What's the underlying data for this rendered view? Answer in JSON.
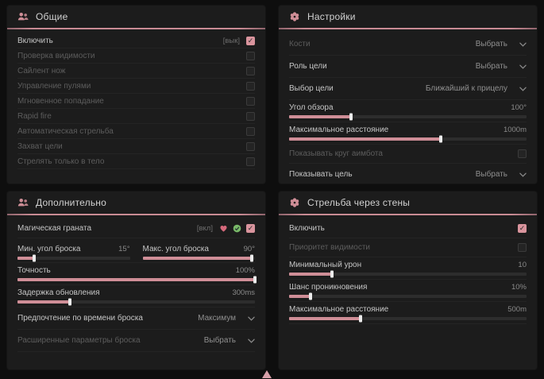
{
  "colors": {
    "accent_pink": "#cf8e97",
    "checkbox_checked": "#d9949d",
    "panel_background": "#1c1c1c",
    "page_background": "#0e0e0e",
    "green_icon": "#79b868"
  },
  "cursor": {
    "icon": "cursor-triangle-icon"
  },
  "panels": [
    {
      "id": "general",
      "icon": "users-icon",
      "title": "Общие",
      "rows": [
        {
          "type": "checkbox",
          "label": "Включить",
          "keybind": "[вык]",
          "checked": true,
          "enabled": true
        },
        {
          "type": "checkbox",
          "label": "Проверка видимости",
          "checked": false,
          "enabled": false
        },
        {
          "type": "checkbox",
          "label": "Сайлент нож",
          "checked": false,
          "enabled": false
        },
        {
          "type": "checkbox",
          "label": "Управление пулями",
          "checked": false,
          "enabled": false
        },
        {
          "type": "checkbox",
          "label": "Мгновенное попадание",
          "checked": false,
          "enabled": false
        },
        {
          "type": "checkbox",
          "label": "Rapid fire",
          "checked": false,
          "enabled": false
        },
        {
          "type": "checkbox",
          "label": "Автоматическая стрельба",
          "checked": false,
          "enabled": false
        },
        {
          "type": "checkbox",
          "label": "Захват цели",
          "checked": false,
          "enabled": false
        },
        {
          "type": "checkbox",
          "label": "Стрелять только в тело",
          "checked": false,
          "enabled": false
        }
      ]
    },
    {
      "id": "settings",
      "icon": "gear-icon",
      "title": "Настройки",
      "rows": [
        {
          "type": "select",
          "label": "Кости",
          "value": "Выбрать",
          "enabled": false
        },
        {
          "type": "select",
          "label": "Роль цели",
          "value": "Выбрать",
          "enabled": true
        },
        {
          "type": "select",
          "label": "Выбор цели",
          "value": "Ближайший к прицелу",
          "enabled": true
        },
        {
          "type": "slider",
          "label": "Угол обзора",
          "value": "100°",
          "percent": 26,
          "enabled": true
        },
        {
          "type": "slider",
          "label": "Максимальное расстояние",
          "value": "1000m",
          "percent": 64,
          "enabled": true
        },
        {
          "type": "checkbox",
          "label": "Показывать круг аимбота",
          "checked": false,
          "enabled": false
        },
        {
          "type": "select",
          "label": "Показывать цель",
          "value": "Выбрать",
          "enabled": true
        }
      ]
    },
    {
      "id": "additional",
      "icon": "users-icon",
      "title": "Дополнительно",
      "rows": [
        {
          "type": "checkbox",
          "label": "Магическая граната",
          "keybind": "[вкл]",
          "icons": [
            "pink-heart-icon",
            "green-check-icon"
          ],
          "checked": true,
          "enabled": true
        },
        {
          "type": "dual-slider",
          "cells": [
            {
              "label": "Мин. угол броска",
              "value": "15°",
              "percent": 15
            },
            {
              "label": "Макс. угол броска",
              "value": "90°",
              "percent": 97
            }
          ]
        },
        {
          "type": "slider",
          "label": "Точность",
          "value": "100%",
          "percent": 100,
          "enabled": true
        },
        {
          "type": "slider",
          "label": "Задержка обновления",
          "value": "300ms",
          "percent": 22,
          "enabled": true
        },
        {
          "type": "select",
          "label": "Предпочтение по времени броска",
          "value": "Максимум",
          "enabled": true
        },
        {
          "type": "select",
          "label": "Расширенные параметры броска",
          "value": "Выбрать",
          "enabled": false
        }
      ]
    },
    {
      "id": "wallbang",
      "icon": "gear-icon",
      "title": "Стрельба через стены",
      "rows": [
        {
          "type": "checkbox",
          "label": "Включить",
          "checked": true,
          "enabled": true
        },
        {
          "type": "checkbox",
          "label": "Приоритет видимости",
          "checked": false,
          "enabled": false
        },
        {
          "type": "slider",
          "label": "Минимальный урон",
          "value": "10",
          "percent": 18,
          "enabled": true
        },
        {
          "type": "slider",
          "label": "Шанс проникновения",
          "value": "10%",
          "percent": 9,
          "enabled": true
        },
        {
          "type": "slider",
          "label": "Максимальное расстояние",
          "value": "500m",
          "percent": 30,
          "enabled": true
        }
      ]
    }
  ]
}
